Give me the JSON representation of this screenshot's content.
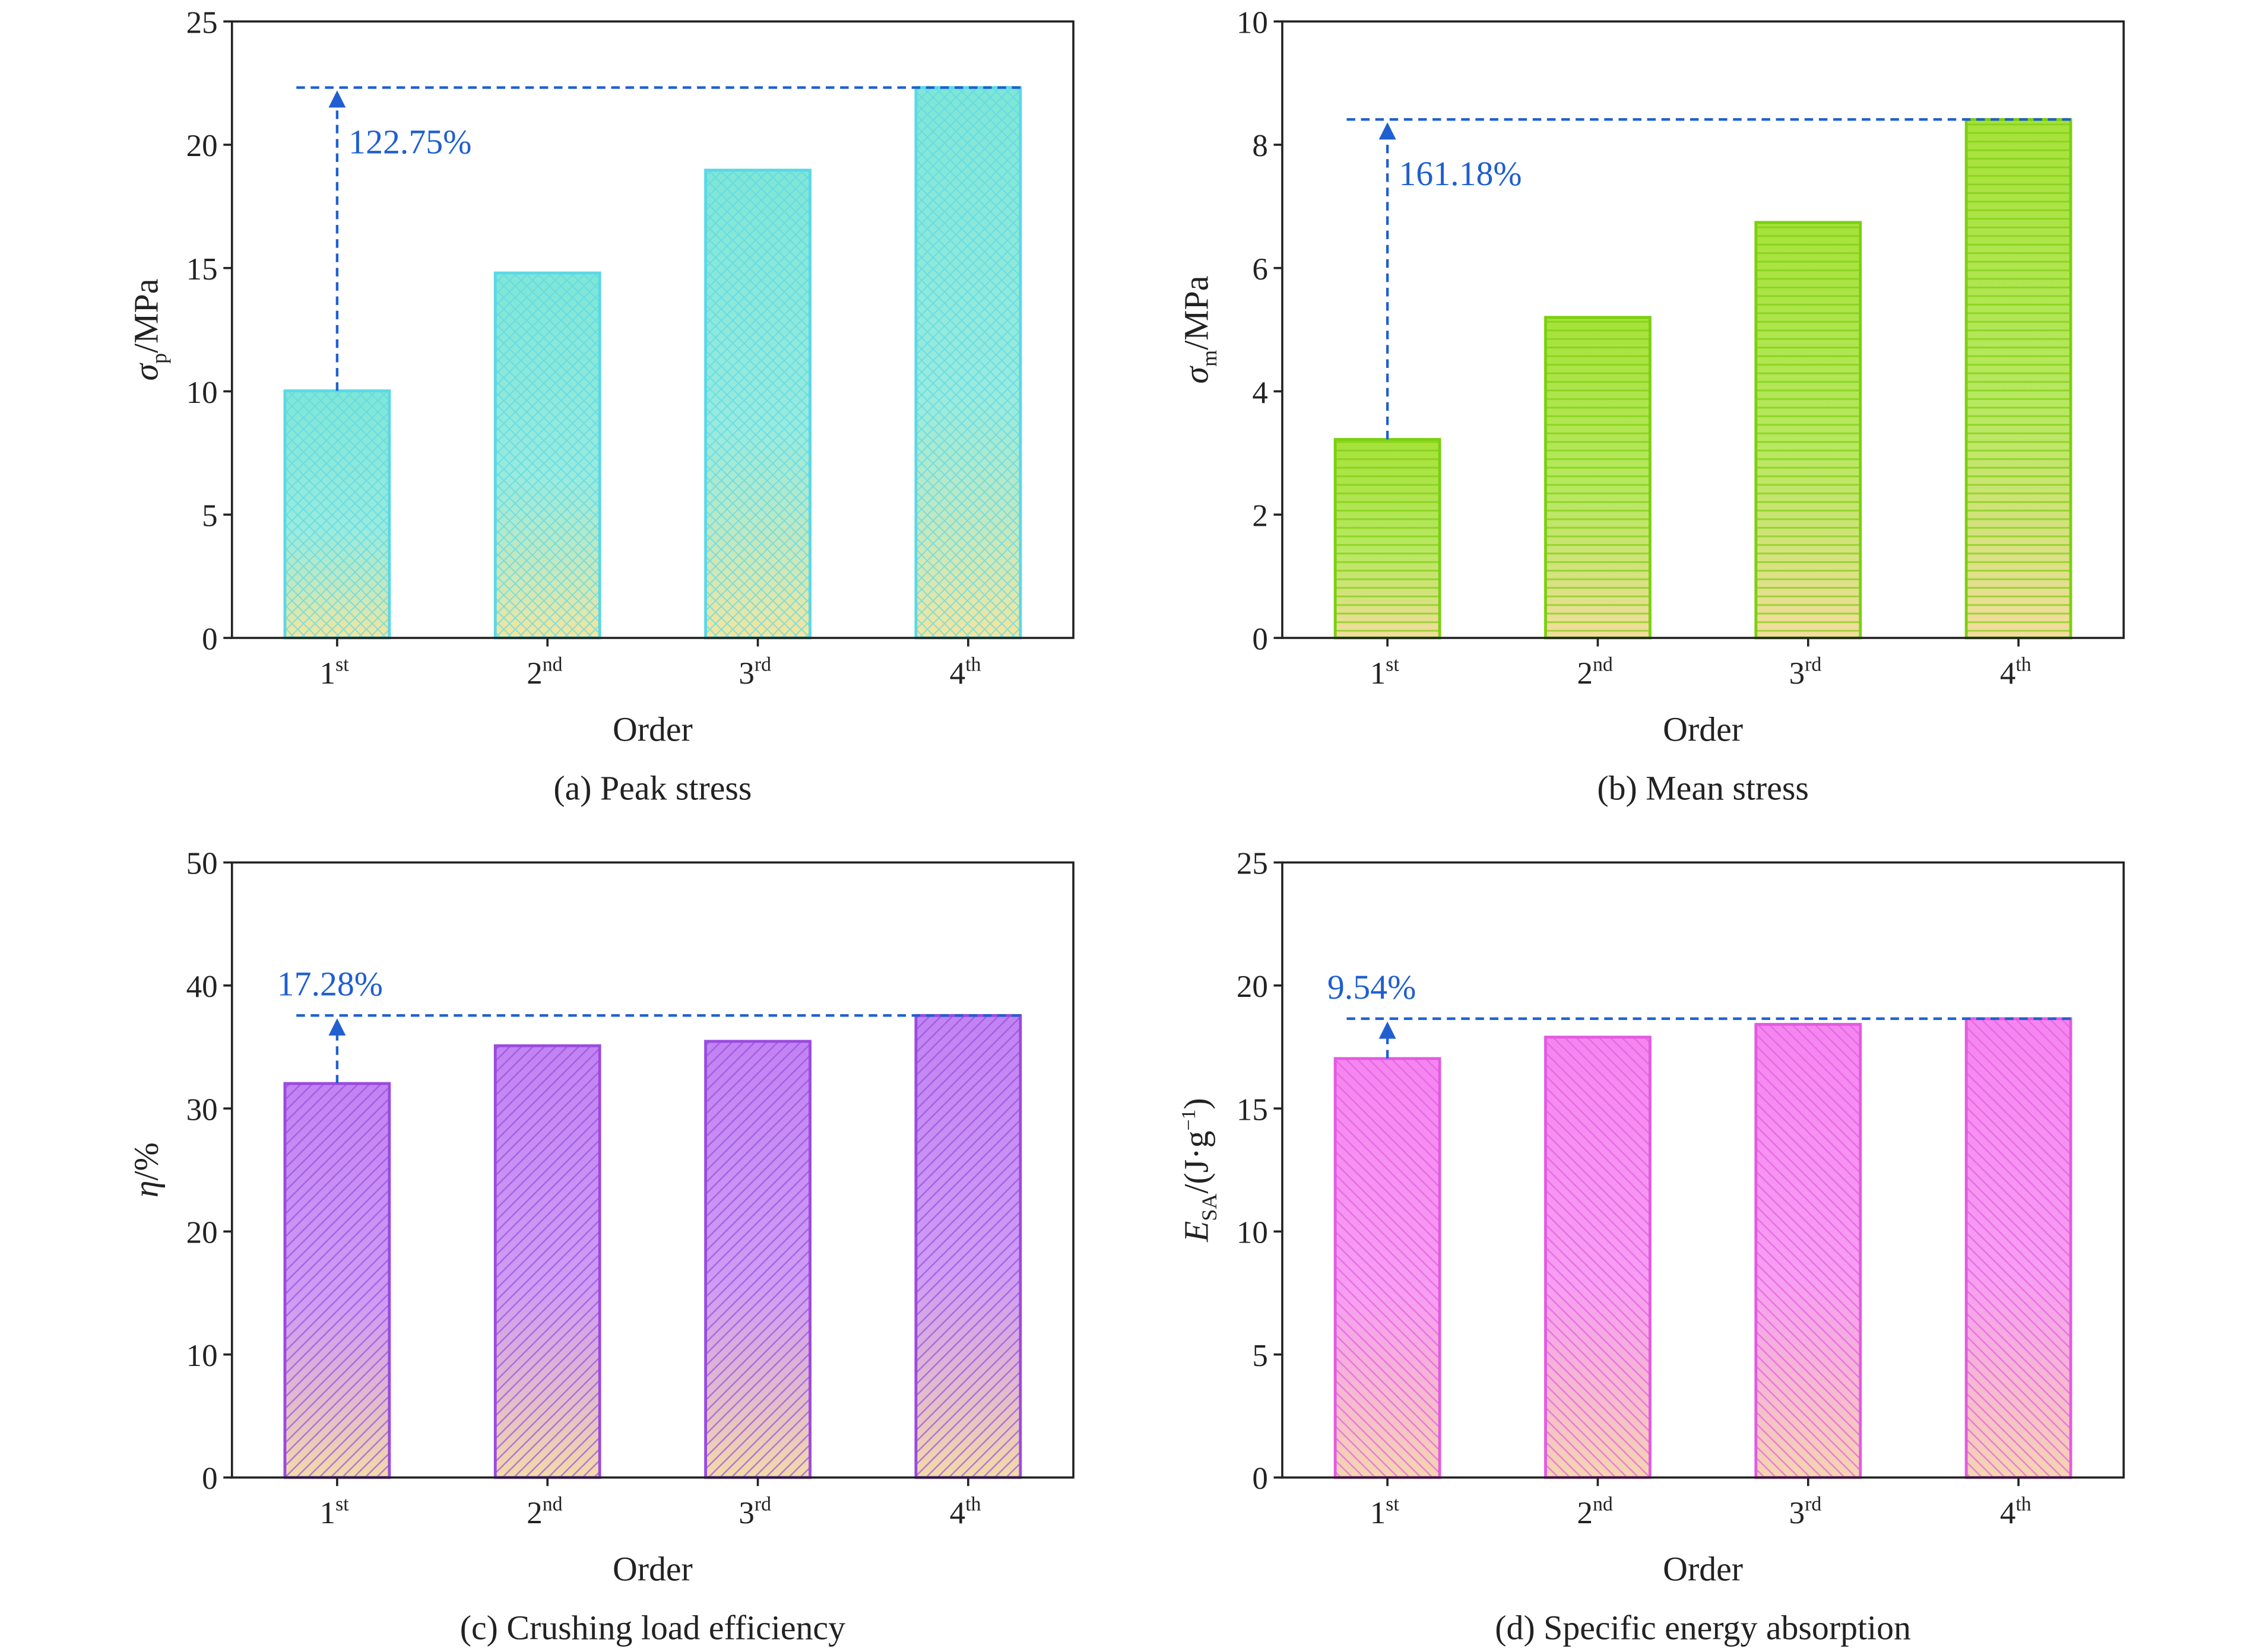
{
  "chart_data": [
    {
      "type": "bar",
      "caption": "(a) Peak stress",
      "xlabel": "Order",
      "ylabel": {
        "symbol": "σ",
        "sub": "p",
        "unit": "/MPa"
      },
      "categories": [
        {
          "base": "1",
          "sup": "st"
        },
        {
          "base": "2",
          "sup": "nd"
        },
        {
          "base": "3",
          "sup": "rd"
        },
        {
          "base": "4",
          "sup": "th"
        }
      ],
      "values": [
        10.02,
        14.8,
        18.97,
        22.32
      ],
      "ylim": [
        0,
        25
      ],
      "yticks": [
        0,
        5,
        10,
        15,
        20,
        25
      ],
      "annotation": "122.75%",
      "colors": {
        "fill_top": "#7fe6d6",
        "fill_bottom": "#f3e6a0",
        "stroke": "#5ad8e6"
      },
      "pattern": "crosshatch"
    },
    {
      "type": "bar",
      "caption": "(b) Mean stress",
      "xlabel": "Order",
      "ylabel": {
        "symbol": "σ",
        "sub": "m",
        "unit": "/MPa"
      },
      "categories": [
        {
          "base": "1",
          "sup": "st"
        },
        {
          "base": "2",
          "sup": "nd"
        },
        {
          "base": "3",
          "sup": "rd"
        },
        {
          "base": "4",
          "sup": "th"
        }
      ],
      "values": [
        3.22,
        5.2,
        6.74,
        8.41
      ],
      "ylim": [
        0,
        10
      ],
      "yticks": [
        0,
        2,
        4,
        6,
        8,
        10
      ],
      "annotation": "161.18%",
      "colors": {
        "fill_top": "#a6e23a",
        "fill_bottom": "#f5dca0",
        "stroke": "#7ccf10"
      },
      "pattern": "horizontal"
    },
    {
      "type": "bar",
      "caption": "(c) Crushing load efficiency",
      "xlabel": "Order",
      "ylabel": {
        "symbol": "η",
        "sub": "",
        "unit": "/%"
      },
      "categories": [
        {
          "base": "1",
          "sup": "st"
        },
        {
          "base": "2",
          "sup": "nd"
        },
        {
          "base": "3",
          "sup": "rd"
        },
        {
          "base": "4",
          "sup": "th"
        }
      ],
      "values": [
        32.03,
        35.1,
        35.46,
        37.56
      ],
      "ylim": [
        0,
        50
      ],
      "yticks": [
        0,
        10,
        20,
        30,
        40,
        50
      ],
      "annotation": "17.28%",
      "colors": {
        "fill_top": "#c283f2",
        "fill_bottom": "#f3dba8",
        "stroke": "#9a4ae0"
      },
      "pattern": "diagonal"
    },
    {
      "type": "bar",
      "caption": "(d) Specific energy absorption",
      "xlabel": "Order",
      "ylabel": {
        "symbol": "E",
        "sub": "SA",
        "unit": "/(J·g",
        "sup": "−1",
        "end": ")"
      },
      "categories": [
        {
          "base": "1",
          "sup": "st"
        },
        {
          "base": "2",
          "sup": "nd"
        },
        {
          "base": "3",
          "sup": "rd"
        },
        {
          "base": "4",
          "sup": "th"
        }
      ],
      "values": [
        17.03,
        17.9,
        18.42,
        18.65
      ],
      "ylim": [
        0,
        25
      ],
      "yticks": [
        0,
        5,
        10,
        15,
        20,
        25
      ],
      "annotation": "9.54%",
      "colors": {
        "fill_top": "#f585f0",
        "fill_bottom": "#f5d6b0",
        "stroke": "#e35ae0"
      },
      "pattern": "backdiagonal"
    }
  ],
  "annotation_color": "#1f5fd0"
}
